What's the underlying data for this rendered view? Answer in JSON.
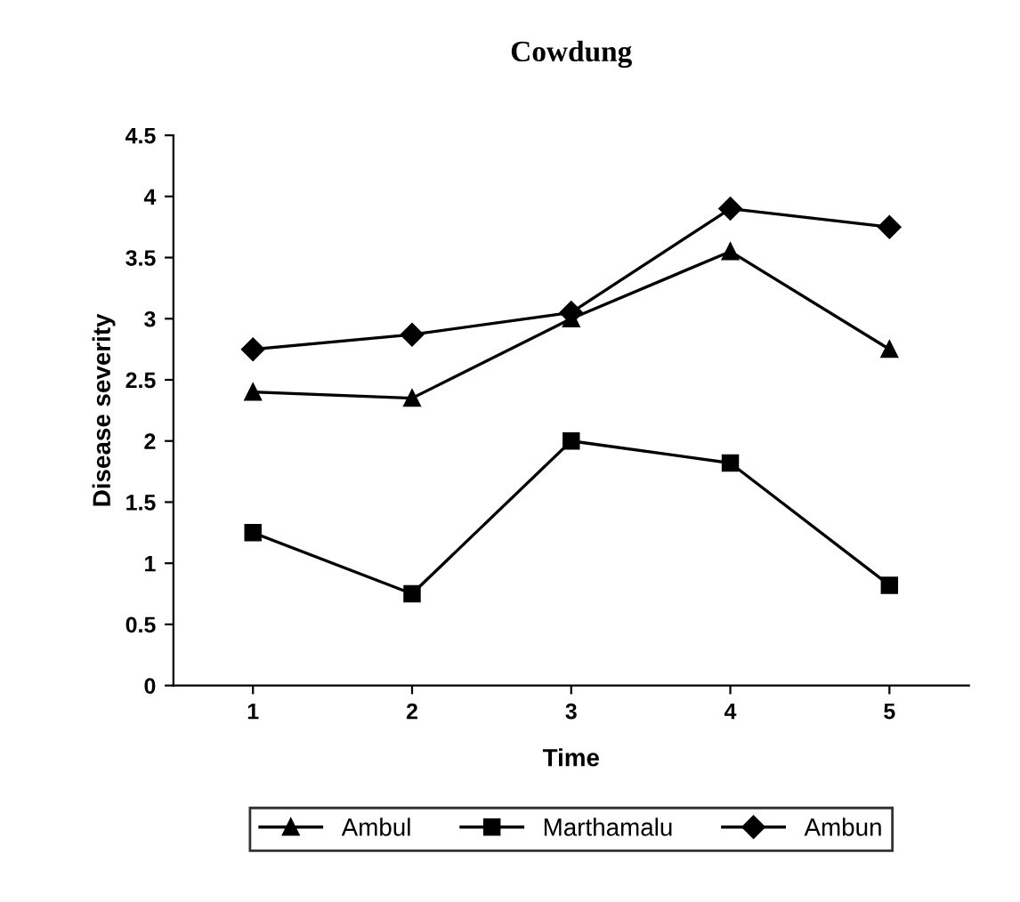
{
  "chart_data": {
    "type": "line",
    "title": "Cowdung",
    "xlabel": "Time",
    "ylabel": "Disease severity",
    "categories": [
      "1",
      "2",
      "3",
      "4",
      "5"
    ],
    "series": [
      {
        "name": "Ambul",
        "color": "#000000",
        "marker": "triangle",
        "values": [
          2.4,
          2.35,
          3.0,
          3.55,
          2.75
        ]
      },
      {
        "name": "Marthamalu",
        "color": "#000000",
        "marker": "square",
        "values": [
          1.25,
          0.75,
          2.0,
          1.82,
          0.82
        ]
      },
      {
        "name": "Ambun",
        "color": "#000000",
        "marker": "diamond",
        "values": [
          2.75,
          2.87,
          3.05,
          3.9,
          3.75
        ]
      }
    ],
    "ylim": [
      0,
      4.5
    ],
    "yticks": [
      0,
      0.5,
      1,
      1.5,
      2,
      2.5,
      3,
      3.5,
      4,
      4.5
    ],
    "grid": false,
    "legend": "bottom",
    "line_style": "solid"
  }
}
